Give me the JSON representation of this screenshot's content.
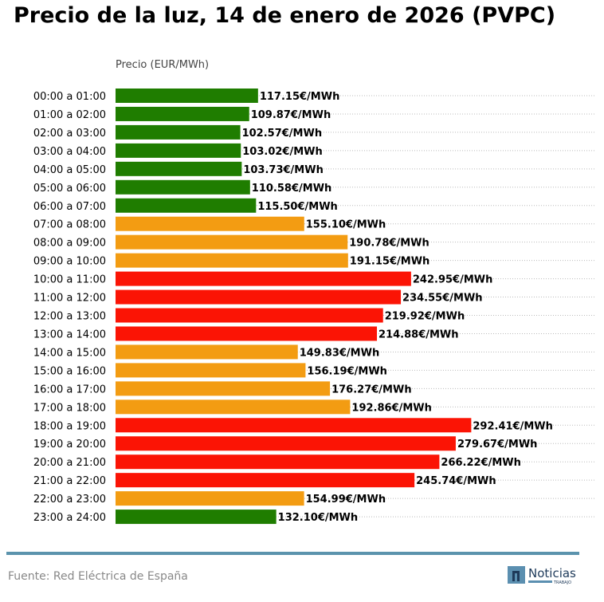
{
  "chart_data": {
    "type": "bar",
    "orientation": "horizontal",
    "title": "Precio de la luz, 14 de enero de 2026 (PVPC)",
    "xlabel": "Precio (EUR/MWh)",
    "xlim": [
      0,
      395
    ],
    "grid": "dotted horizontal",
    "value_suffix": "€/MWh",
    "categories": [
      "00:00 a 01:00",
      "01:00 a 02:00",
      "02:00 a 03:00",
      "03:00 a 04:00",
      "04:00 a 05:00",
      "05:00 a 06:00",
      "06:00 a 07:00",
      "07:00 a 08:00",
      "08:00 a 09:00",
      "09:00 a 10:00",
      "10:00 a 11:00",
      "11:00 a 12:00",
      "12:00 a 13:00",
      "13:00 a 14:00",
      "14:00 a 15:00",
      "15:00 a 16:00",
      "16:00 a 17:00",
      "17:00 a 18:00",
      "18:00 a 19:00",
      "19:00 a 20:00",
      "20:00 a 21:00",
      "21:00 a 22:00",
      "22:00 a 23:00",
      "23:00 a 24:00"
    ],
    "values": [
      117.15,
      109.87,
      102.57,
      103.02,
      103.73,
      110.58,
      115.5,
      155.1,
      190.78,
      191.15,
      242.95,
      234.55,
      219.92,
      214.88,
      149.83,
      156.19,
      176.27,
      192.86,
      292.41,
      279.67,
      266.22,
      245.74,
      154.99,
      132.1
    ],
    "levels": [
      "low",
      "low",
      "low",
      "low",
      "low",
      "low",
      "low",
      "mid",
      "mid",
      "mid",
      "high",
      "high",
      "high",
      "high",
      "mid",
      "mid",
      "mid",
      "mid",
      "high",
      "high",
      "high",
      "high",
      "mid",
      "low"
    ],
    "colors": {
      "low": "#1f7d00",
      "mid": "#f39c12",
      "high": "#fb1405"
    }
  },
  "footer": {
    "source": "Fuente: Red Eléctrica de España",
    "logo_text": "Noticias",
    "logo_subtext": "TRABAJO",
    "rule_color": "#5b93ad"
  }
}
